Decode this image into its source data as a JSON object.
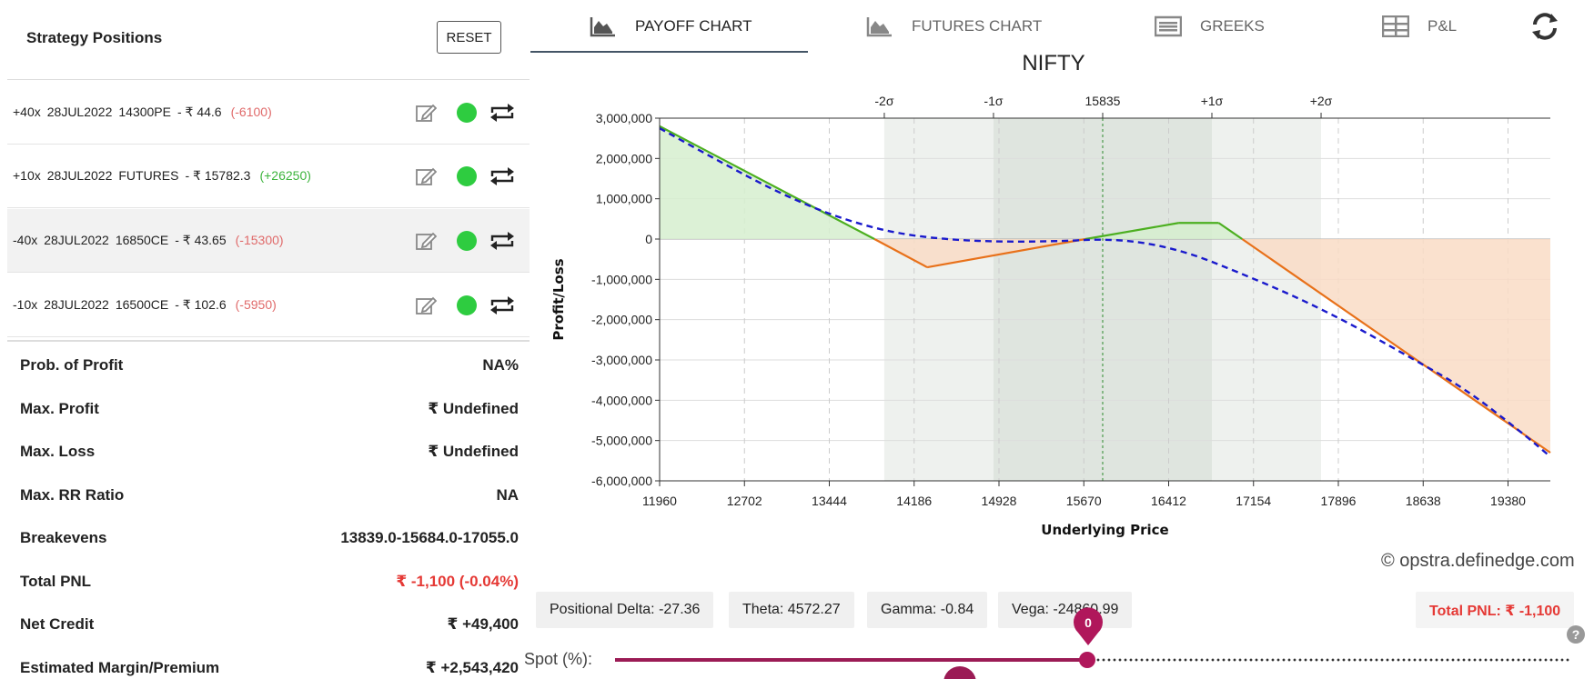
{
  "left_panel": {
    "title": "Strategy Positions",
    "reset_label": "RESET",
    "positions": [
      {
        "qty": "+40x",
        "expiry": "28JUL2022",
        "instrument": "14300PE",
        "price": "- ₹ 44.6",
        "pnl": "(-6100)",
        "pnl_sign": "neg"
      },
      {
        "qty": "+10x",
        "expiry": "28JUL2022",
        "instrument": "FUTURES",
        "price": "- ₹ 15782.3",
        "pnl": "(+26250)",
        "pnl_sign": "pos"
      },
      {
        "qty": "-40x",
        "expiry": "28JUL2022",
        "instrument": "16850CE",
        "price": "- ₹ 43.65",
        "pnl": "(-15300)",
        "pnl_sign": "neg"
      },
      {
        "qty": "-10x",
        "expiry": "28JUL2022",
        "instrument": "16500CE",
        "price": "- ₹ 102.6",
        "pnl": "(-5950)",
        "pnl_sign": "neg"
      }
    ],
    "stats": [
      {
        "label": "Prob. of Profit",
        "value": "NA%"
      },
      {
        "label": "Max. Profit",
        "value": "₹ Undefined"
      },
      {
        "label": "Max. Loss",
        "value": "₹ Undefined"
      },
      {
        "label": "Max. RR Ratio",
        "value": "NA"
      },
      {
        "label": "Breakevens",
        "value": "13839.0-15684.0-17055.0"
      },
      {
        "label": "Total PNL",
        "value": "₹ -1,100 (-0.04%)",
        "color": "red"
      },
      {
        "label": "Net Credit",
        "value": "₹ +49,400"
      },
      {
        "label": "Estimated Margin/Premium",
        "value": "₹ +2,543,420"
      }
    ]
  },
  "tabs": [
    {
      "label": "PAYOFF CHART",
      "icon": "area-chart-icon",
      "active": true
    },
    {
      "label": "FUTURES CHART",
      "icon": "area-chart-icon",
      "active": false
    },
    {
      "label": "GREEKS",
      "icon": "list-icon",
      "active": false
    },
    {
      "label": "P&L",
      "icon": "table-icon",
      "active": false
    }
  ],
  "refresh_icon": "refresh-icon",
  "chart_data": {
    "type": "line",
    "title": "NIFTY",
    "xlabel": "Underlying Price",
    "ylabel": "Profit/Loss",
    "xlim": [
      11960,
      19750
    ],
    "ylim": [
      -6000000,
      3000000
    ],
    "x_ticks": [
      11960,
      12702,
      13444,
      14186,
      14928,
      15670,
      16412,
      17154,
      17896,
      18638,
      19380
    ],
    "y_ticks": [
      3000000,
      2000000,
      1000000,
      0,
      -1000000,
      -2000000,
      -3000000,
      -4000000,
      -5000000,
      -6000000
    ],
    "y_tick_labels": [
      "3,000,000",
      "2,000,000",
      "1,000,000",
      "0",
      "-1,000,000",
      "-2,000,000",
      "-3,000,000",
      "-4,000,000",
      "-5,000,000",
      "-6,000,000"
    ],
    "sigma_labels": [
      {
        "label": "-2σ",
        "x": 13925
      },
      {
        "label": "-1σ",
        "x": 14880
      },
      {
        "label": "15835",
        "x": 15835
      },
      {
        "label": "+1σ",
        "x": 16790
      },
      {
        "label": "+2σ",
        "x": 17745
      }
    ],
    "series": [
      {
        "style": "solid",
        "x": [
          11960,
          13839,
          14300,
          15684,
          16500,
          16850,
          17055,
          19750
        ],
        "y": [
          2800000,
          0,
          -700000,
          0,
          400000,
          400000,
          0,
          -5300000
        ]
      },
      {
        "style": "dashed",
        "x": [
          11960,
          12500,
          13000,
          13500,
          14000,
          14500,
          15000,
          15500,
          15835,
          16200,
          16600,
          17000,
          17500,
          18000,
          18500,
          19000,
          19500,
          19750
        ],
        "y": [
          2750000,
          1900000,
          1150000,
          550000,
          150000,
          -20000,
          -70000,
          -50000,
          0,
          -80000,
          -350000,
          -800000,
          -1400000,
          -2100000,
          -2900000,
          -3700000,
          -4800000,
          -5400000
        ]
      }
    ],
    "colors": {
      "profit_line": "#4caf20",
      "loss_line": "#e8711a",
      "expiry_dashed": "#1a1acc",
      "profit_fill": "#d6efcf",
      "loss_fill": "#f9dcc6",
      "spot_line": "#2e8b2e"
    }
  },
  "watermark": "© opstra.definedge.com",
  "greeks": [
    {
      "label": "Positional Delta: -27.36"
    },
    {
      "label": "Theta: 4572.27"
    },
    {
      "label": "Gamma: -0.84"
    },
    {
      "label": "Vega: -24860.99"
    }
  ],
  "total_pnl_badge": "Total PNL: ₹ -1,100",
  "slider": {
    "label": "Spot (%):",
    "value": "0",
    "fill_fraction": 0.5
  },
  "help_glyph": "?"
}
